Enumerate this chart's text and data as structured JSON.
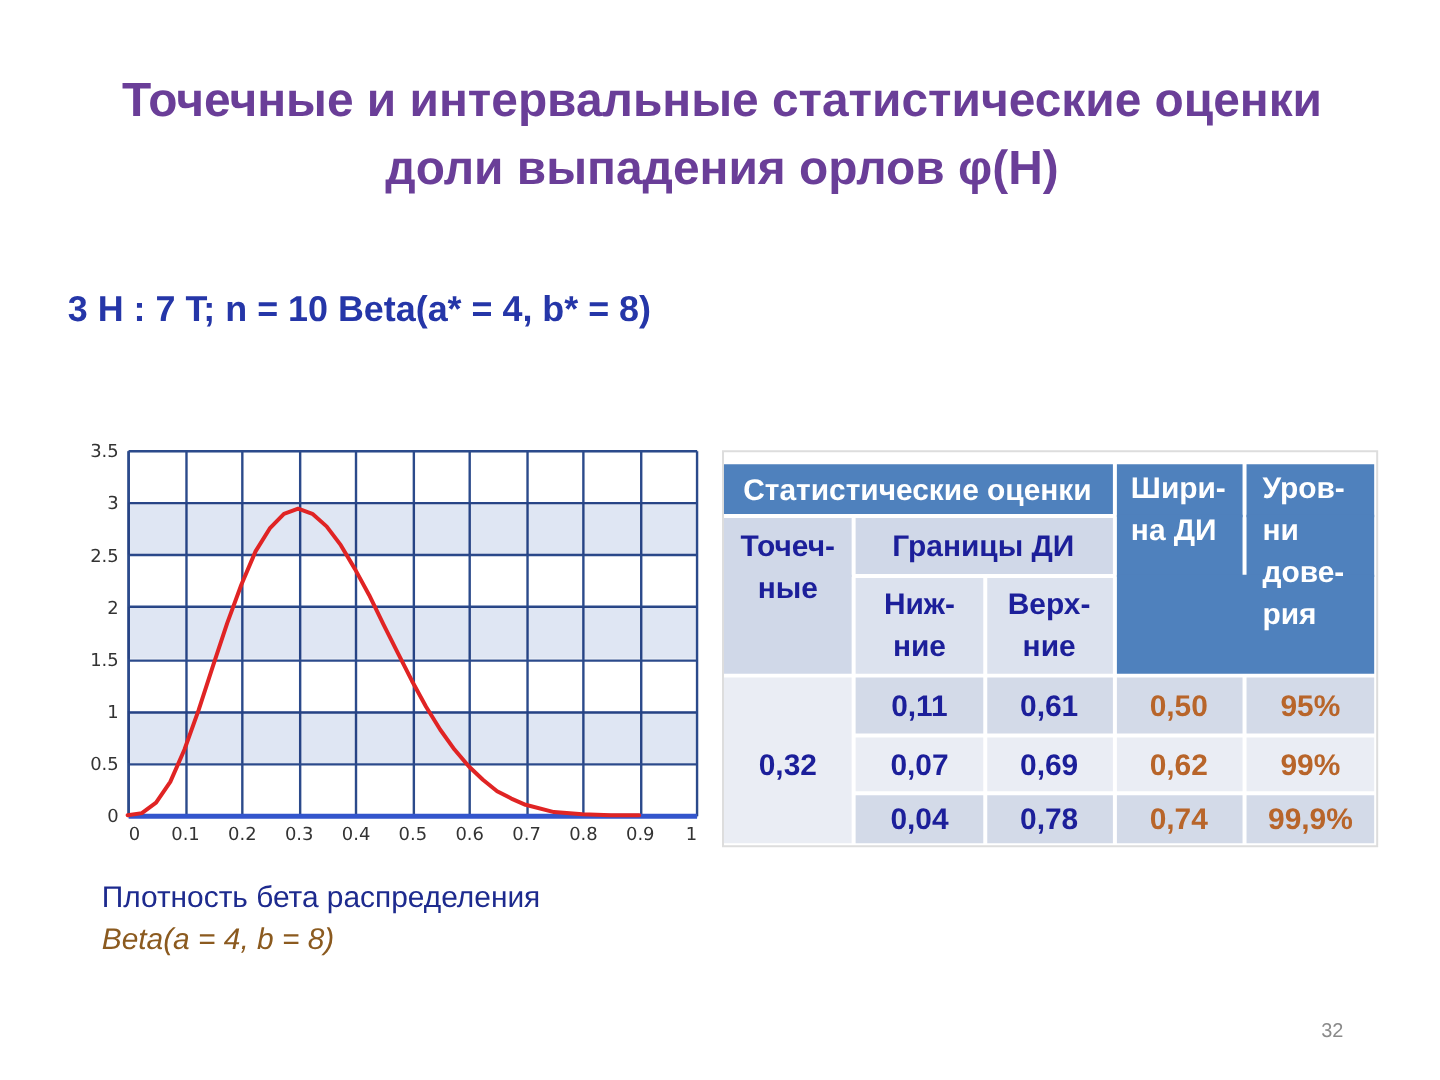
{
  "chart_data": [
    {
      "type": "line",
      "title": "Точечные и интервальные статистические оценки\nдоли выпадения орлов φ(H)",
      "subtitle": "3 H : 7 T; n = 10 Beta(a* = 4, b* = 8)",
      "x": [
        0,
        0.025,
        0.05,
        0.075,
        0.1,
        0.125,
        0.15,
        0.175,
        0.2,
        0.225,
        0.25,
        0.275,
        0.3,
        0.325,
        0.35,
        0.375,
        0.4,
        0.425,
        0.45,
        0.475,
        0.5,
        0.525,
        0.55,
        0.575,
        0.6,
        0.625,
        0.65,
        0.675,
        0.7,
        0.75,
        0.8,
        0.85,
        0.9
      ],
      "series": [
        {
          "color": "#e02424",
          "values": [
            0,
            0.02,
            0.12,
            0.32,
            0.63,
            1.01,
            1.43,
            1.84,
            2.21,
            2.53,
            2.75,
            2.89,
            2.94,
            2.89,
            2.77,
            2.59,
            2.36,
            2.11,
            1.83,
            1.56,
            1.29,
            1.04,
            0.82,
            0.63,
            0.47,
            0.34,
            0.23,
            0.16,
            0.1,
            0.03,
            0.01,
            0,
            0
          ]
        }
      ],
      "xlim": [
        0,
        1
      ],
      "xticks": [
        0,
        0.1,
        0.2,
        0.3,
        0.4,
        0.5,
        0.6,
        0.7,
        0.8,
        0.9,
        1
      ],
      "ylim": [
        0,
        3.5
      ],
      "yticks": [
        0,
        0.5,
        1,
        1.5,
        2,
        2.5,
        3,
        3.5
      ],
      "grid": true,
      "line_style": "solid",
      "bands": [
        {
          "axis": "y",
          "from": 0.5,
          "to": 1,
          "color": "#dfe6f3"
        },
        {
          "axis": "y",
          "from": 1.5,
          "to": 2,
          "color": "#dfe6f3"
        },
        {
          "axis": "y",
          "from": 2.5,
          "to": 3,
          "color": "#dfe6f3"
        }
      ],
      "annotations": [
        "Плотность бета распределения",
        "Beta(a = 4, b = 8)"
      ]
    },
    {
      "type": "other",
      "annotations": [
        "Статистические оценки",
        "Шири-\nна ДИ",
        "Уров-\nни\nдове-\nрия",
        "Точеч-\nные",
        "Границы ДИ",
        "Ниж-\nние",
        "Верх-\nние",
        "0,11",
        "0,61",
        "0,50",
        "95%",
        "0,32",
        "0,07",
        "0,69",
        "0,62",
        "99%",
        "0,04",
        "0,78",
        "0,74",
        "99,9%",
        "32"
      ]
    }
  ]
}
